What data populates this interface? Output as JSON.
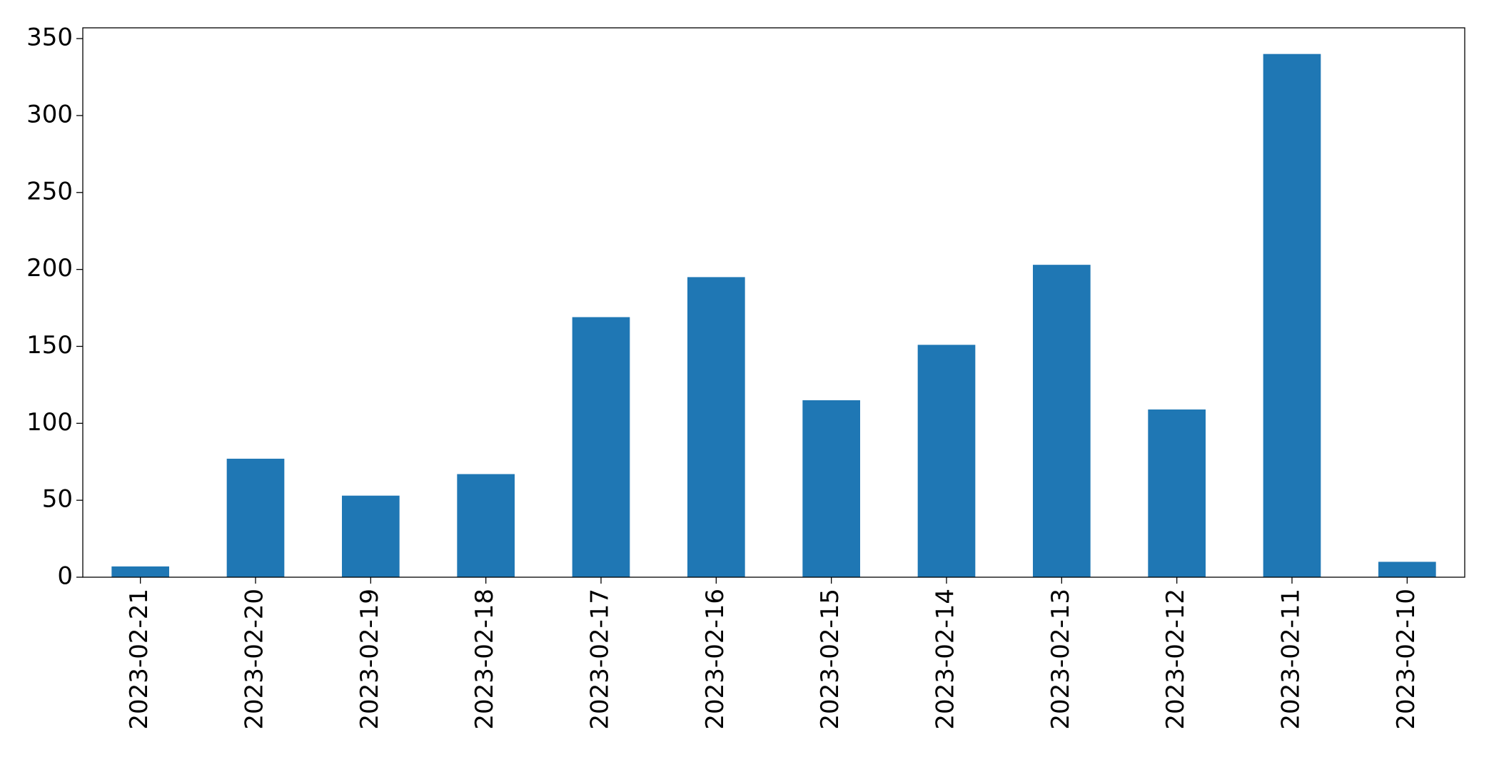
{
  "chart_data": {
    "type": "bar",
    "categories": [
      "2023-02-21",
      "2023-02-20",
      "2023-02-19",
      "2023-02-18",
      "2023-02-17",
      "2023-02-16",
      "2023-02-15",
      "2023-02-14",
      "2023-02-13",
      "2023-02-12",
      "2023-02-11",
      "2023-02-10"
    ],
    "values": [
      7,
      77,
      53,
      67,
      169,
      195,
      115,
      151,
      203,
      109,
      340,
      10
    ],
    "color": "#1f77b4",
    "ylim": [
      0,
      357
    ],
    "yticks": [
      0,
      50,
      100,
      150,
      200,
      250,
      300,
      350
    ],
    "grid": false
  }
}
